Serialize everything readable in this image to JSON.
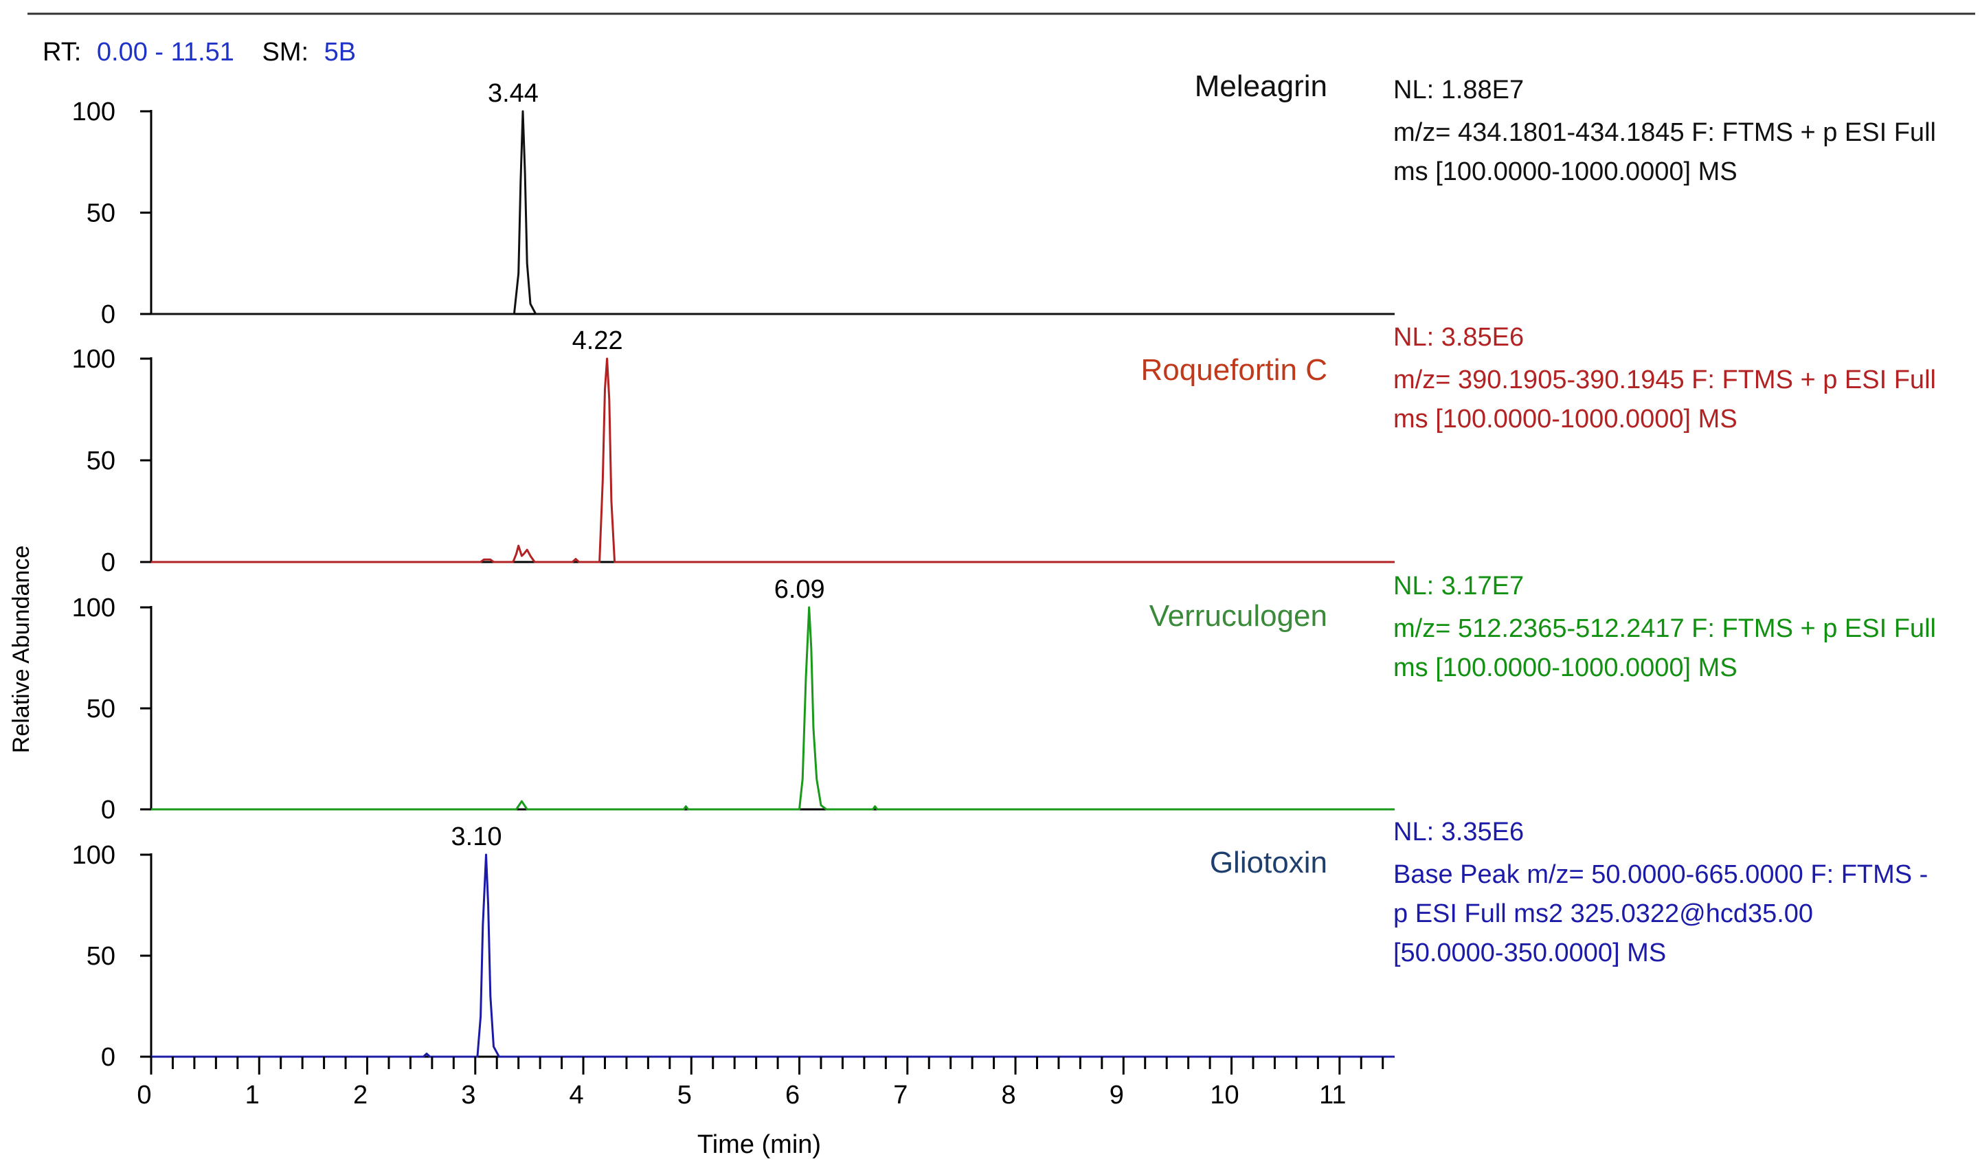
{
  "header": {
    "rt_label": "RT:",
    "rt_value": "0.00 - 11.51",
    "sm_label": "SM:",
    "sm_value": "5B"
  },
  "colors": {
    "axis": "#000000",
    "header_value": "#1f32c8",
    "rule": "#333333"
  },
  "chart_data": {
    "type": "line",
    "ylabel": "Relative Abundance",
    "xlabel": "Time (min)",
    "xlim": [
      0,
      11.51
    ],
    "x_ticks": [
      0,
      1,
      2,
      3,
      4,
      5,
      6,
      7,
      8,
      9,
      10,
      11
    ],
    "ylim": [
      0,
      100
    ],
    "y_ticks": [
      0,
      50,
      100
    ],
    "panels": [
      {
        "compound": "Meleagrin",
        "compound_color": "#111111",
        "line_color": "#111111",
        "info_color": "#111111",
        "peak_label": "3.44",
        "nl": "NL: 1.88E7",
        "info": [
          "m/z= 434.1801-434.1845 F: FTMS + p ESI Full",
          "ms [100.0000-1000.0000]  MS"
        ],
        "points": [
          [
            0,
            0
          ],
          [
            3.36,
            0
          ],
          [
            3.4,
            20
          ],
          [
            3.42,
            65
          ],
          [
            3.44,
            100
          ],
          [
            3.46,
            70
          ],
          [
            3.48,
            25
          ],
          [
            3.51,
            5
          ],
          [
            3.56,
            0
          ],
          [
            11.51,
            0
          ]
        ]
      },
      {
        "compound": "Roquefortin C",
        "compound_color": "#c0391b",
        "line_color": "#b22222",
        "info_color": "#b22222",
        "peak_label": "4.22",
        "nl": "NL: 3.85E6",
        "info": [
          "m/z= 390.1905-390.1945 F: FTMS + p ESI Full",
          "ms [100.0000-1000.0000]  MS"
        ],
        "points": [
          [
            0,
            0
          ],
          [
            3.05,
            0
          ],
          [
            3.08,
            1.2
          ],
          [
            3.14,
            1.2
          ],
          [
            3.17,
            0
          ],
          [
            3.35,
            0
          ],
          [
            3.38,
            4
          ],
          [
            3.4,
            8
          ],
          [
            3.43,
            3
          ],
          [
            3.45,
            4
          ],
          [
            3.48,
            6
          ],
          [
            3.51,
            3
          ],
          [
            3.55,
            0
          ],
          [
            3.9,
            0
          ],
          [
            3.93,
            1.5
          ],
          [
            3.96,
            0
          ],
          [
            4.15,
            0
          ],
          [
            4.18,
            40
          ],
          [
            4.2,
            85
          ],
          [
            4.22,
            100
          ],
          [
            4.24,
            80
          ],
          [
            4.26,
            30
          ],
          [
            4.29,
            0
          ],
          [
            11.51,
            0
          ]
        ]
      },
      {
        "compound": "Verruculogen",
        "compound_color": "#3a8a3a",
        "line_color": "#1a9a1a",
        "info_color": "#129012",
        "peak_label": "6.09",
        "nl": "NL: 3.17E7",
        "info": [
          "m/z= 512.2365-512.2417 F: FTMS + p ESI Full",
          "ms [100.0000-1000.0000]  MS"
        ],
        "points": [
          [
            0,
            0
          ],
          [
            3.38,
            0
          ],
          [
            3.43,
            4
          ],
          [
            3.48,
            0
          ],
          [
            4.93,
            0
          ],
          [
            4.95,
            1.5
          ],
          [
            4.97,
            0
          ],
          [
            6.0,
            0
          ],
          [
            6.03,
            15
          ],
          [
            6.06,
            65
          ],
          [
            6.09,
            100
          ],
          [
            6.11,
            80
          ],
          [
            6.13,
            40
          ],
          [
            6.16,
            15
          ],
          [
            6.2,
            2
          ],
          [
            6.25,
            0
          ],
          [
            6.68,
            0
          ],
          [
            6.7,
            1.5
          ],
          [
            6.72,
            0
          ],
          [
            11.51,
            0
          ]
        ]
      },
      {
        "compound": "Gliotoxin",
        "compound_color": "#1e3f6e",
        "line_color": "#1b1ba8",
        "info_color": "#1b1ba8",
        "peak_label": "3.10",
        "nl": "NL: 3.35E6",
        "info": [
          "Base Peak m/z= 50.0000-665.0000 F: FTMS -",
          "p ESI Full ms2 325.0322@hcd35.00",
          "[50.0000-350.0000]  MS"
        ],
        "points": [
          [
            0,
            0
          ],
          [
            2.52,
            0
          ],
          [
            2.55,
            1.5
          ],
          [
            2.58,
            0
          ],
          [
            3.02,
            0
          ],
          [
            3.05,
            20
          ],
          [
            3.07,
            65
          ],
          [
            3.1,
            100
          ],
          [
            3.12,
            75
          ],
          [
            3.14,
            30
          ],
          [
            3.17,
            5
          ],
          [
            3.22,
            0
          ],
          [
            11.51,
            0
          ]
        ]
      }
    ]
  }
}
